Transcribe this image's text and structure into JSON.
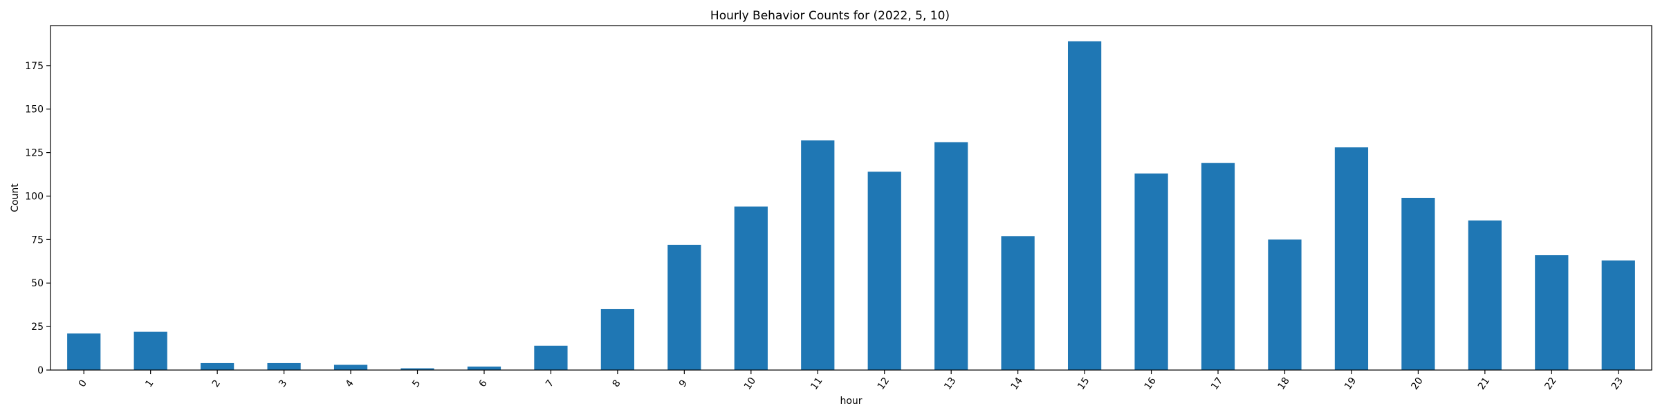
{
  "chart_data": {
    "type": "bar",
    "title": "Hourly Behavior Counts for (2022, 5, 10)",
    "xlabel": "hour",
    "ylabel": "Count",
    "categories": [
      "0",
      "1",
      "2",
      "3",
      "4",
      "5",
      "6",
      "7",
      "8",
      "9",
      "10",
      "11",
      "12",
      "13",
      "14",
      "15",
      "16",
      "17",
      "18",
      "19",
      "20",
      "21",
      "22",
      "23"
    ],
    "values": [
      21,
      22,
      4,
      4,
      3,
      1,
      2,
      14,
      35,
      72,
      94,
      132,
      114,
      131,
      77,
      189,
      113,
      119,
      75,
      128,
      99,
      86,
      66,
      63
    ],
    "ylim": [
      0,
      198
    ],
    "yticks": [
      0,
      25,
      50,
      75,
      100,
      125,
      150,
      175
    ],
    "bar_color": "#1f77b4",
    "grid": false,
    "legend": "none"
  }
}
